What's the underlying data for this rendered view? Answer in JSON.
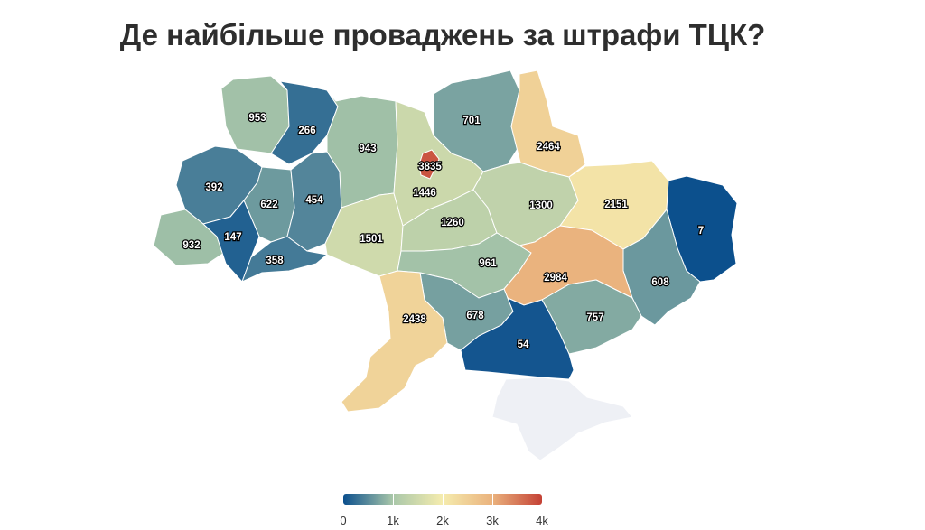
{
  "title": "Де найбільше проваджень за штрафи ТЦК?",
  "colors": {
    "background": "#ffffff",
    "border": "#ffffff",
    "no_data": "#eef0f5"
  },
  "color_scale": {
    "min": 0,
    "max": 4000,
    "stops": [
      "#0b4f8d",
      "#a9c7a9",
      "#f5ecae",
      "#eab27d",
      "#c44135"
    ]
  },
  "legend": {
    "ticks": [
      {
        "value": 0,
        "label": "0"
      },
      {
        "value": 1000,
        "label": "1k"
      },
      {
        "value": 2000,
        "label": "2k"
      },
      {
        "value": 3000,
        "label": "3k"
      },
      {
        "value": 4000,
        "label": "4k"
      }
    ]
  },
  "chart_data": {
    "type": "choropleth",
    "regions": [
      {
        "id": "volyn",
        "value": 953
      },
      {
        "id": "rivne",
        "value": 266
      },
      {
        "id": "lviv",
        "value": 392
      },
      {
        "id": "ternopil",
        "value": 622
      },
      {
        "id": "khmelnytskyi",
        "value": 454
      },
      {
        "id": "zakarpattia",
        "value": 932
      },
      {
        "id": "ivano-frankivsk",
        "value": 147
      },
      {
        "id": "chernivtsi",
        "value": 358
      },
      {
        "id": "zhytomyr",
        "value": 943
      },
      {
        "id": "vinnytsia",
        "value": 1501
      },
      {
        "id": "kyiv-oblast",
        "value": 1446
      },
      {
        "id": "kyiv-city",
        "value": 3835
      },
      {
        "id": "chernihiv",
        "value": 701
      },
      {
        "id": "sumy",
        "value": 2464
      },
      {
        "id": "cherkasy",
        "value": 1260
      },
      {
        "id": "poltava",
        "value": 1300
      },
      {
        "id": "kharkiv",
        "value": 2151
      },
      {
        "id": "luhansk",
        "value": 7
      },
      {
        "id": "donetsk",
        "value": 608
      },
      {
        "id": "kirovohrad",
        "value": 961
      },
      {
        "id": "dnipropetrovsk",
        "value": 2984
      },
      {
        "id": "zaporizhzhia",
        "value": 757
      },
      {
        "id": "mykolaiv",
        "value": 678
      },
      {
        "id": "odesa",
        "value": 2438
      },
      {
        "id": "kherson",
        "value": 54
      },
      {
        "id": "crimea",
        "value": null
      }
    ]
  }
}
